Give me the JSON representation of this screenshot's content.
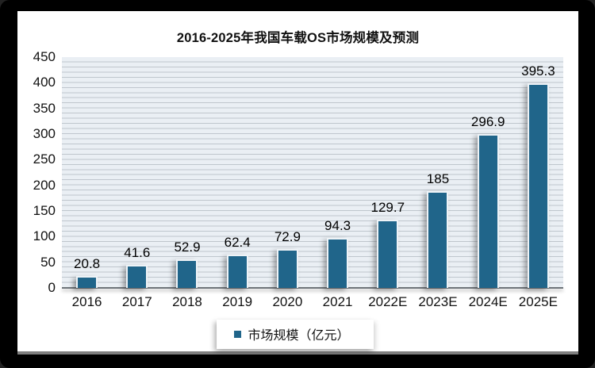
{
  "title": "2016-2025年我国车载OS市场规模及预测",
  "chart_data": {
    "type": "bar",
    "title": "2016-2025年我国车载OS市场规模及预测",
    "categories": [
      "2016",
      "2017",
      "2018",
      "2019",
      "2020",
      "2021",
      "2022E",
      "2023E",
      "2024E",
      "2025E"
    ],
    "series": [
      {
        "name": "市场规模（亿元）",
        "values": [
          20.8,
          41.6,
          52.9,
          62.4,
          72.9,
          94.3,
          129.7,
          185,
          296.9,
          395.3
        ],
        "data_labels": [
          "20.8",
          "41.6",
          "52.9",
          "62.4",
          "72.9",
          "94.3",
          "129.7",
          "185",
          "296.9",
          "395.3"
        ]
      }
    ],
    "xlabel": "",
    "ylabel": "",
    "ylim": [
      0,
      450
    ],
    "ytick_step": 50,
    "yticks": [
      0,
      50,
      100,
      150,
      200,
      250,
      300,
      350,
      400,
      450
    ],
    "grid": "horizontal, minor every 10 units",
    "legend_position": "bottom",
    "legend_entries": [
      "市场规模（亿元）"
    ]
  },
  "colors": {
    "bar_fill": "#20658a",
    "plot_bg": "#eaeff4",
    "gridline": "#bfc6cd",
    "axis_line": "#6e747a",
    "text": "#111111",
    "frame_bg": "#000000",
    "card_bg": "#ffffff"
  },
  "legend": {
    "label": "市场规模（亿元）"
  }
}
